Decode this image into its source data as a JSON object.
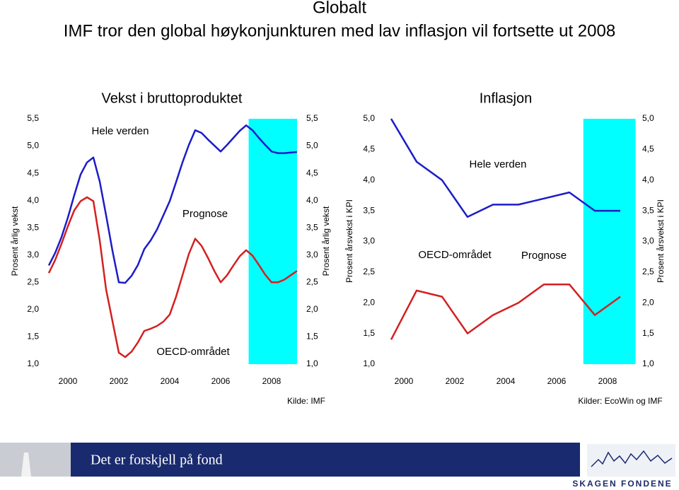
{
  "header": {
    "title": "Globalt",
    "subtitle": "IMF tror den global høykonjunkturen med lav inflasjon vil fortsette ut 2008"
  },
  "chart_data": [
    {
      "type": "line",
      "title": "Vekst i bruttoproduktet",
      "ylabel": "Prosent årlig vekst",
      "source": "Kilde: IMF",
      "xlim": [
        1999,
        2009.14
      ],
      "ylim": [
        1.0,
        5.5
      ],
      "xticks": [
        2000,
        2002,
        2004,
        2006,
        2008
      ],
      "yticks": [
        {
          "value": 1.0,
          "label": "1,0"
        },
        {
          "value": 1.5,
          "label": "1,5"
        },
        {
          "value": 2.0,
          "label": "2,0"
        },
        {
          "value": 2.5,
          "label": "2,5"
        },
        {
          "value": 3.0,
          "label": "3,0"
        },
        {
          "value": 3.5,
          "label": "3,5"
        },
        {
          "value": 4.0,
          "label": "4,0"
        },
        {
          "value": 4.5,
          "label": "4,5"
        },
        {
          "value": 5.0,
          "label": "5,0"
        },
        {
          "value": 5.5,
          "label": "5,5"
        }
      ],
      "forecast_span": [
        2007.1,
        2009.0
      ],
      "forecast_color": "#00ffff",
      "x": [
        1999.25,
        1999.5,
        1999.75,
        2000,
        2000.25,
        2000.5,
        2000.75,
        2001,
        2001.25,
        2001.5,
        2001.75,
        2002,
        2002.25,
        2002.5,
        2002.75,
        2003,
        2003.25,
        2003.5,
        2003.75,
        2004,
        2004.25,
        2004.5,
        2004.75,
        2005,
        2005.25,
        2005.5,
        2005.75,
        2006,
        2006.25,
        2006.5,
        2006.75,
        2007,
        2007.25,
        2007.5,
        2007.75,
        2008,
        2008.25,
        2008.5,
        2008.75,
        2009
      ],
      "series": [
        {
          "name": "Hele verden",
          "color": "#1c1cc8",
          "values": [
            2.81,
            3.04,
            3.33,
            3.69,
            4.1,
            4.48,
            4.7,
            4.79,
            4.35,
            3.73,
            3.08,
            2.5,
            2.49,
            2.62,
            2.82,
            3.11,
            3.27,
            3.47,
            3.73,
            3.99,
            4.34,
            4.7,
            5.02,
            5.29,
            5.24,
            5.12,
            5.01,
            4.9,
            5.02,
            5.15,
            5.28,
            5.38,
            5.29,
            5.15,
            5.02,
            4.9,
            4.87,
            4.87,
            4.88,
            4.89
          ]
        },
        {
          "name": "OECD-området",
          "color": "#d42020",
          "values": [
            2.67,
            2.91,
            3.21,
            3.53,
            3.82,
            3.99,
            4.06,
            3.99,
            3.27,
            2.37,
            1.79,
            1.21,
            1.13,
            1.23,
            1.4,
            1.61,
            1.65,
            1.7,
            1.78,
            1.91,
            2.24,
            2.63,
            3.02,
            3.3,
            3.17,
            2.95,
            2.71,
            2.5,
            2.63,
            2.81,
            2.98,
            3.09,
            2.99,
            2.82,
            2.64,
            2.5,
            2.5,
            2.55,
            2.63,
            2.71
          ]
        }
      ],
      "annotations": [
        "Hele verden",
        "Prognose",
        "OECD-området"
      ]
    },
    {
      "type": "line",
      "title": "Inflasjon",
      "ylabel": "Prosent årsvekst i KPI",
      "source": "Kilder: EcoWin og IMF",
      "xlim": [
        1999,
        2009.14
      ],
      "ylim": [
        1.0,
        5.0
      ],
      "xticks": [
        2000,
        2002,
        2004,
        2006,
        2008
      ],
      "yticks": [
        {
          "value": 1.0,
          "label": "1,0"
        },
        {
          "value": 1.5,
          "label": "1,5"
        },
        {
          "value": 2.0,
          "label": "2,0"
        },
        {
          "value": 2.5,
          "label": "2,5"
        },
        {
          "value": 3.0,
          "label": "3,0"
        },
        {
          "value": 3.5,
          "label": "3,5"
        },
        {
          "value": 4.0,
          "label": "4,0"
        },
        {
          "value": 4.5,
          "label": "4,5"
        },
        {
          "value": 5.0,
          "label": "5,0"
        }
      ],
      "forecast_span": [
        2007.05,
        2009.1
      ],
      "forecast_color": "#00ffff",
      "x": [
        1999.5,
        2000.5,
        2001.5,
        2002.5,
        2003.5,
        2004.5,
        2005.5,
        2006.5,
        2007.5,
        2008.5
      ],
      "series": [
        {
          "name": "Hele verden",
          "color": "#1c1cc8",
          "values": [
            5.0,
            4.3,
            4.0,
            3.4,
            3.6,
            3.6,
            3.7,
            3.8,
            3.5,
            3.5
          ]
        },
        {
          "name": "OECD-området",
          "color": "#d42020",
          "values": [
            1.4,
            2.2,
            2.1,
            1.5,
            1.8,
            2.0,
            2.3,
            2.3,
            1.8,
            2.1
          ]
        }
      ],
      "annotations": [
        "Hele verden",
        "OECD-området",
        "Prognose"
      ]
    }
  ],
  "footer": {
    "slogan": "Det er forskjell på fond",
    "brand": "SKAGEN FONDENE"
  }
}
